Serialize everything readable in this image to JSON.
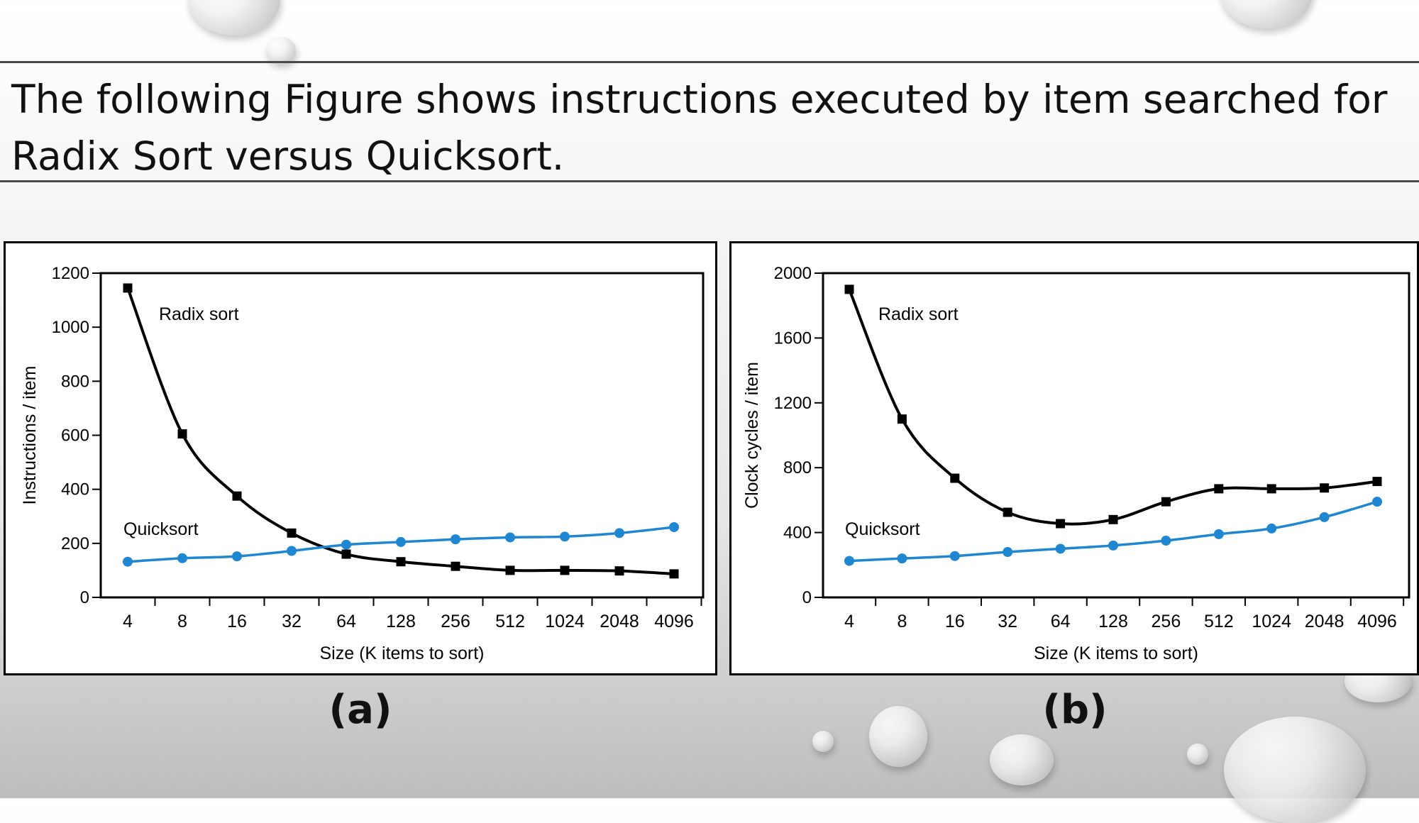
{
  "slide": {
    "title_line1": "The following Figure shows instructions executed by item searched for",
    "title_line2": "Radix Sort versus Quicksort."
  },
  "colors": {
    "radix": "#000000",
    "quicksort": "#1f86d1",
    "frame": "#000000"
  },
  "chart_data": [
    {
      "type": "line",
      "panel_label": "(a)",
      "xlabel": "Size (K items to sort)",
      "ylabel": "Instructions / item",
      "categories": [
        "4",
        "8",
        "16",
        "32",
        "64",
        "128",
        "256",
        "512",
        "1024",
        "2048",
        "4096"
      ],
      "ylim": [
        0,
        1200
      ],
      "yticks": [
        0,
        200,
        400,
        600,
        800,
        1000,
        1200
      ],
      "series": [
        {
          "name": "Radix sort",
          "marker": "square",
          "values": [
            1145,
            605,
            375,
            238,
            160,
            132,
            115,
            100,
            100,
            98,
            87
          ]
        },
        {
          "name": "Quicksort",
          "marker": "circle",
          "values": [
            132,
            145,
            152,
            172,
            195,
            205,
            215,
            222,
            225,
            238,
            260
          ]
        }
      ]
    },
    {
      "type": "line",
      "panel_label": "(b)",
      "xlabel": "Size (K items to sort)",
      "ylabel": "Clock cycles / item",
      "categories": [
        "4",
        "8",
        "16",
        "32",
        "64",
        "128",
        "256",
        "512",
        "1024",
        "2048",
        "4096"
      ],
      "ylim": [
        0,
        2000
      ],
      "yticks": [
        0,
        400,
        800,
        1200,
        1600,
        2000
      ],
      "series": [
        {
          "name": "Radix sort",
          "marker": "square",
          "values": [
            1900,
            1100,
            735,
            525,
            455,
            480,
            590,
            670,
            670,
            675,
            715
          ]
        },
        {
          "name": "Quicksort",
          "marker": "circle",
          "values": [
            225,
            240,
            255,
            280,
            300,
            320,
            350,
            390,
            425,
            495,
            590
          ]
        }
      ]
    }
  ]
}
